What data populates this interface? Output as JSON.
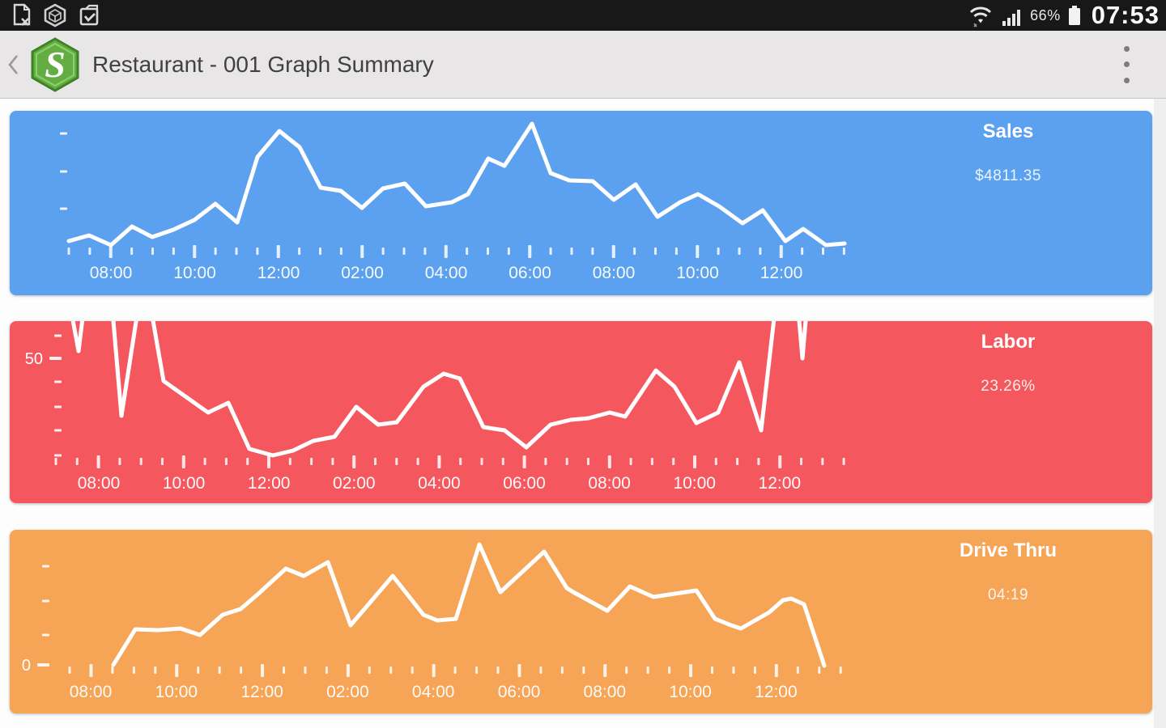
{
  "status_bar": {
    "time": "07:53",
    "battery": "66%",
    "left_icons": [
      "document-x-icon",
      "hexagon-package-icon",
      "clipboard-check-icon"
    ],
    "right_icons": [
      "wifi-icon",
      "signal-strength-icon",
      "battery-icon"
    ]
  },
  "app_bar": {
    "title": "Restaurant - 001 Graph Summary",
    "logo_letter": "S",
    "logo_color": "#58a23c"
  },
  "colors": {
    "sales_blue": "#5ba1ef",
    "labor_red": "#f4585e",
    "drive_orange": "#f6a456",
    "line_white": "#ffffff",
    "status_bar_bg": "#181818",
    "app_bar_bg": "#e8e6e6"
  },
  "chart_data": [
    {
      "id": "sales",
      "type": "line",
      "title": "Sales",
      "display_value": "$4811.35",
      "panel_color": "#5ba1ef",
      "legend_position": "top-right",
      "grid": false,
      "x_axis": {
        "labels": [
          "08:00",
          "10:00",
          "12:00",
          "02:00",
          "04:00",
          "06:00",
          "08:00",
          "10:00",
          "12:00"
        ],
        "label_start_x": 125,
        "label_spacing": 103.5,
        "tick_start_x": 73,
        "tick_spacing": 25.875,
        "tick_count": 38,
        "first_major_tick": 2
      },
      "y_axis": {
        "tick_x": 62,
        "ticks": [
          {
            "y": 28
          },
          {
            "y": 75
          },
          {
            "y": 121
          }
        ]
      },
      "series": {
        "name": "Sales",
        "stroke": "#ffffff",
        "points": [
          [
            73,
            161
          ],
          [
            98,
            154
          ],
          [
            125,
            166
          ],
          [
            151,
            143
          ],
          [
            176,
            156
          ],
          [
            202,
            147
          ],
          [
            228,
            135
          ],
          [
            254,
            115
          ],
          [
            281,
            138
          ],
          [
            306,
            57
          ],
          [
            333,
            25
          ],
          [
            358,
            45
          ],
          [
            384,
            95
          ],
          [
            409,
            99
          ],
          [
            435,
            120
          ],
          [
            461,
            96
          ],
          [
            488,
            90
          ],
          [
            514,
            118
          ],
          [
            546,
            113
          ],
          [
            566,
            103
          ],
          [
            591,
            59
          ],
          [
            611,
            68
          ],
          [
            645,
            16
          ],
          [
            668,
            77
          ],
          [
            691,
            86
          ],
          [
            720,
            87
          ],
          [
            746,
            110
          ],
          [
            773,
            91
          ],
          [
            800,
            131
          ],
          [
            828,
            113
          ],
          [
            850,
            103
          ],
          [
            876,
            118
          ],
          [
            905,
            139
          ],
          [
            930,
            123
          ],
          [
            958,
            161
          ],
          [
            980,
            146
          ],
          [
            1008,
            166
          ],
          [
            1031,
            164
          ]
        ]
      }
    },
    {
      "id": "labor",
      "type": "line",
      "title": "Labor",
      "display_value": "23.26%",
      "panel_color": "#f4585e",
      "legend_position": "top-right",
      "grid": false,
      "x_axis": {
        "labels": [
          "08:00",
          "10:00",
          "12:00",
          "02:00",
          "04:00",
          "06:00",
          "08:00",
          "10:00",
          "12:00"
        ],
        "label_start_x": 110,
        "label_spacing": 105.1,
        "tick_start_x": 57,
        "tick_spacing": 26.3,
        "tick_count": 38,
        "first_major_tick": 2
      },
      "y_axis": {
        "tick_x": 55,
        "ticks": [
          {
            "y": 18
          },
          {
            "y": 46,
            "label": "50"
          },
          {
            "y": 75
          },
          {
            "y": 106
          },
          {
            "y": 135
          },
          {
            "y": 166
          }
        ]
      },
      "series": {
        "name": "Labor",
        "stroke": "#ffffff",
        "points": [
          [
            76,
            -12
          ],
          [
            85,
            37
          ],
          [
            91,
            -12
          ],
          [
            127,
            -12
          ],
          [
            138,
            117
          ],
          [
            158,
            -12
          ],
          [
            175,
            -12
          ],
          [
            190,
            74
          ],
          [
            245,
            113
          ],
          [
            270,
            101
          ],
          [
            296,
            158
          ],
          [
            325,
            166
          ],
          [
            350,
            160
          ],
          [
            375,
            148
          ],
          [
            401,
            143
          ],
          [
            428,
            106
          ],
          [
            455,
            128
          ],
          [
            478,
            125
          ],
          [
            511,
            81
          ],
          [
            536,
            65
          ],
          [
            556,
            71
          ],
          [
            585,
            131
          ],
          [
            611,
            135
          ],
          [
            638,
            156
          ],
          [
            668,
            128
          ],
          [
            693,
            122
          ],
          [
            715,
            120
          ],
          [
            741,
            113
          ],
          [
            760,
            118
          ],
          [
            798,
            61
          ],
          [
            821,
            81
          ],
          [
            848,
            126
          ],
          [
            875,
            113
          ],
          [
            901,
            51
          ],
          [
            928,
            135
          ],
          [
            945,
            -12
          ],
          [
            974,
            -12
          ],
          [
            979,
            46
          ],
          [
            984,
            -12
          ]
        ]
      }
    },
    {
      "id": "drive-thru",
      "type": "line",
      "title": "Drive Thru",
      "display_value": "04:19",
      "panel_color": "#f6a456",
      "legend_position": "top-right",
      "grid": false,
      "x_axis": {
        "labels": [
          "08:00",
          "10:00",
          "12:00",
          "02:00",
          "04:00",
          "06:00",
          "08:00",
          "10:00",
          "12:00"
        ],
        "label_start_x": 100,
        "label_spacing": 105.8,
        "tick_start_x": 74,
        "tick_spacing": 26.45,
        "tick_count": 37,
        "first_major_tick": 1
      },
      "y_axis": {
        "tick_x": 40,
        "ticks": [
          {
            "y": 45
          },
          {
            "y": 88
          },
          {
            "y": 130
          },
          {
            "y": 167,
            "label": "0"
          }
        ]
      },
      "series": {
        "name": "Drive Thru",
        "stroke": "#ffffff",
        "points": [
          [
            128,
            167
          ],
          [
            155,
            123
          ],
          [
            183,
            124
          ],
          [
            211,
            122
          ],
          [
            235,
            130
          ],
          [
            263,
            105
          ],
          [
            285,
            98
          ],
          [
            306,
            80
          ],
          [
            341,
            48
          ],
          [
            363,
            57
          ],
          [
            393,
            40
          ],
          [
            421,
            118
          ],
          [
            473,
            57
          ],
          [
            511,
            105
          ],
          [
            528,
            112
          ],
          [
            551,
            110
          ],
          [
            580,
            18
          ],
          [
            606,
            77
          ],
          [
            660,
            27
          ],
          [
            688,
            72
          ],
          [
            696,
            77
          ],
          [
            738,
            100
          ],
          [
            766,
            70
          ],
          [
            795,
            83
          ],
          [
            848,
            75
          ],
          [
            871,
            110
          ],
          [
            891,
            118
          ],
          [
            903,
            122
          ],
          [
            938,
            102
          ],
          [
            955,
            87
          ],
          [
            965,
            85
          ],
          [
            981,
            92
          ],
          [
            1006,
            168
          ]
        ]
      }
    }
  ]
}
